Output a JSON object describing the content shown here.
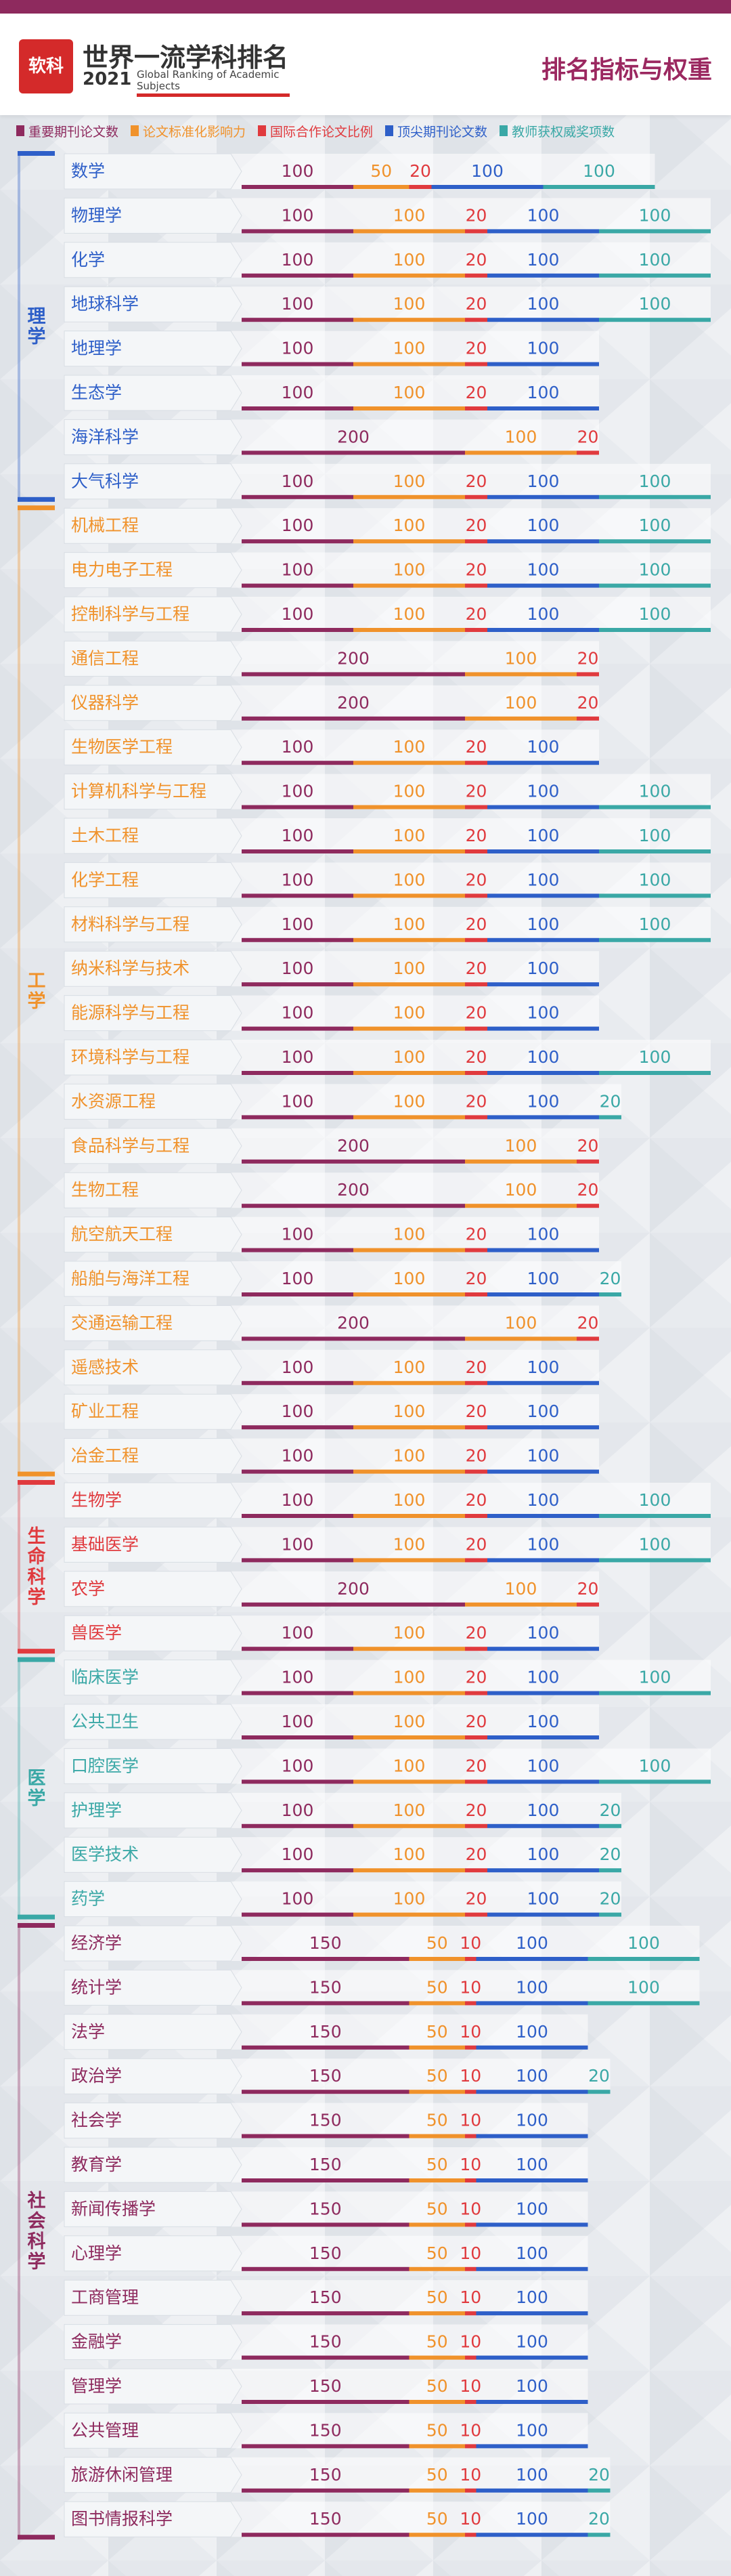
{
  "header": {
    "logo_text": "软科",
    "title": "世界一流学科排名",
    "year": "2021",
    "subtitle_line1": "Global Ranking of Academic",
    "subtitle_line2": "Subjects",
    "right_title": "排名指标与权重"
  },
  "legend": [
    {
      "label": "重要期刊论文数",
      "color": "#8e2a5e"
    },
    {
      "label": "论文标准化影响力",
      "color": "#f0922b"
    },
    {
      "label": "国际合作论文比例",
      "color": "#e03a3e"
    },
    {
      "label": "顶尖期刊论文数",
      "color": "#2e5fc8"
    },
    {
      "label": "教师获权威奖项数",
      "color": "#3aa8a6"
    }
  ],
  "chart_data": {
    "type": "bar",
    "stacked": true,
    "orientation": "horizontal",
    "series": [
      {
        "name": "重要期刊论文数",
        "color": "#8e2a5e"
      },
      {
        "name": "论文标准化影响力",
        "color": "#f0922b"
      },
      {
        "name": "国际合作论文比例",
        "color": "#e03a3e"
      },
      {
        "name": "顶尖期刊论文数",
        "color": "#2e5fc8"
      },
      {
        "name": "教师获权威奖项数",
        "color": "#3aa8a6"
      }
    ],
    "groups": [
      {
        "name": "理学",
        "color": "#2e5fc8",
        "subjects": [
          {
            "name": "数学",
            "values": [
              100,
              50,
              20,
              100,
              100
            ]
          },
          {
            "name": "物理学",
            "values": [
              100,
              100,
              20,
              100,
              100
            ]
          },
          {
            "name": "化学",
            "values": [
              100,
              100,
              20,
              100,
              100
            ]
          },
          {
            "name": "地球科学",
            "values": [
              100,
              100,
              20,
              100,
              100
            ]
          },
          {
            "name": "地理学",
            "values": [
              100,
              100,
              20,
              100,
              0
            ]
          },
          {
            "name": "生态学",
            "values": [
              100,
              100,
              20,
              100,
              0
            ]
          },
          {
            "name": "海洋科学",
            "values": [
              200,
              100,
              20,
              0,
              0
            ]
          },
          {
            "name": "大气科学",
            "values": [
              100,
              100,
              20,
              100,
              100
            ]
          }
        ]
      },
      {
        "name": "工学",
        "color": "#f0922b",
        "subjects": [
          {
            "name": "机械工程",
            "values": [
              100,
              100,
              20,
              100,
              100
            ]
          },
          {
            "name": "电力电子工程",
            "values": [
              100,
              100,
              20,
              100,
              100
            ]
          },
          {
            "name": "控制科学与工程",
            "values": [
              100,
              100,
              20,
              100,
              100
            ]
          },
          {
            "name": "通信工程",
            "values": [
              200,
              100,
              20,
              0,
              0
            ]
          },
          {
            "name": "仪器科学",
            "values": [
              200,
              100,
              20,
              0,
              0
            ]
          },
          {
            "name": "生物医学工程",
            "values": [
              100,
              100,
              20,
              100,
              0
            ]
          },
          {
            "name": "计算机科学与工程",
            "values": [
              100,
              100,
              20,
              100,
              100
            ]
          },
          {
            "name": "土木工程",
            "values": [
              100,
              100,
              20,
              100,
              100
            ]
          },
          {
            "name": "化学工程",
            "values": [
              100,
              100,
              20,
              100,
              100
            ]
          },
          {
            "name": "材料科学与工程",
            "values": [
              100,
              100,
              20,
              100,
              100
            ]
          },
          {
            "name": "纳米科学与技术",
            "values": [
              100,
              100,
              20,
              100,
              0
            ]
          },
          {
            "name": "能源科学与工程",
            "values": [
              100,
              100,
              20,
              100,
              0
            ]
          },
          {
            "name": "环境科学与工程",
            "values": [
              100,
              100,
              20,
              100,
              100
            ]
          },
          {
            "name": "水资源工程",
            "values": [
              100,
              100,
              20,
              100,
              20
            ]
          },
          {
            "name": "食品科学与工程",
            "values": [
              200,
              100,
              20,
              0,
              0
            ]
          },
          {
            "name": "生物工程",
            "values": [
              200,
              100,
              20,
              0,
              0
            ]
          },
          {
            "name": "航空航天工程",
            "values": [
              100,
              100,
              20,
              100,
              0
            ]
          },
          {
            "name": "船舶与海洋工程",
            "values": [
              100,
              100,
              20,
              100,
              20
            ]
          },
          {
            "name": "交通运输工程",
            "values": [
              200,
              100,
              20,
              0,
              0
            ]
          },
          {
            "name": "遥感技术",
            "values": [
              100,
              100,
              20,
              100,
              0
            ]
          },
          {
            "name": "矿业工程",
            "values": [
              100,
              100,
              20,
              100,
              0
            ]
          },
          {
            "name": "冶金工程",
            "values": [
              100,
              100,
              20,
              100,
              0
            ]
          }
        ]
      },
      {
        "name": "生命科学",
        "color": "#e03a3e",
        "subjects": [
          {
            "name": "生物学",
            "values": [
              100,
              100,
              20,
              100,
              100
            ]
          },
          {
            "name": "基础医学",
            "values": [
              100,
              100,
              20,
              100,
              100
            ]
          },
          {
            "name": "农学",
            "values": [
              200,
              100,
              20,
              0,
              0
            ]
          },
          {
            "name": "兽医学",
            "values": [
              100,
              100,
              20,
              100,
              0
            ]
          }
        ]
      },
      {
        "name": "医学",
        "color": "#3aa8a6",
        "subjects": [
          {
            "name": "临床医学",
            "values": [
              100,
              100,
              20,
              100,
              100
            ]
          },
          {
            "name": "公共卫生",
            "values": [
              100,
              100,
              20,
              100,
              0
            ]
          },
          {
            "name": "口腔医学",
            "values": [
              100,
              100,
              20,
              100,
              100
            ]
          },
          {
            "name": "护理学",
            "values": [
              100,
              100,
              20,
              100,
              20
            ]
          },
          {
            "name": "医学技术",
            "values": [
              100,
              100,
              20,
              100,
              20
            ]
          },
          {
            "name": "药学",
            "values": [
              100,
              100,
              20,
              100,
              20
            ]
          }
        ]
      },
      {
        "name": "社会科学",
        "color": "#8e2a5e",
        "subjects": [
          {
            "name": "经济学",
            "values": [
              150,
              50,
              10,
              100,
              100
            ]
          },
          {
            "name": "统计学",
            "values": [
              150,
              50,
              10,
              100,
              100
            ]
          },
          {
            "name": "法学",
            "values": [
              150,
              50,
              10,
              100,
              0
            ]
          },
          {
            "name": "政治学",
            "values": [
              150,
              50,
              10,
              100,
              20
            ]
          },
          {
            "name": "社会学",
            "values": [
              150,
              50,
              10,
              100,
              0
            ]
          },
          {
            "name": "教育学",
            "values": [
              150,
              50,
              10,
              100,
              0
            ]
          },
          {
            "name": "新闻传播学",
            "values": [
              150,
              50,
              10,
              100,
              0
            ]
          },
          {
            "name": "心理学",
            "values": [
              150,
              50,
              10,
              100,
              0
            ]
          },
          {
            "name": "工商管理",
            "values": [
              150,
              50,
              10,
              100,
              0
            ]
          },
          {
            "name": "金融学",
            "values": [
              150,
              50,
              10,
              100,
              0
            ]
          },
          {
            "name": "管理学",
            "values": [
              150,
              50,
              10,
              100,
              0
            ]
          },
          {
            "name": "公共管理",
            "values": [
              150,
              50,
              10,
              100,
              0
            ]
          },
          {
            "name": "旅游休闲管理",
            "values": [
              150,
              50,
              10,
              100,
              20
            ]
          },
          {
            "name": "图书情报科学",
            "values": [
              150,
              50,
              10,
              100,
              20
            ]
          }
        ]
      }
    ]
  }
}
